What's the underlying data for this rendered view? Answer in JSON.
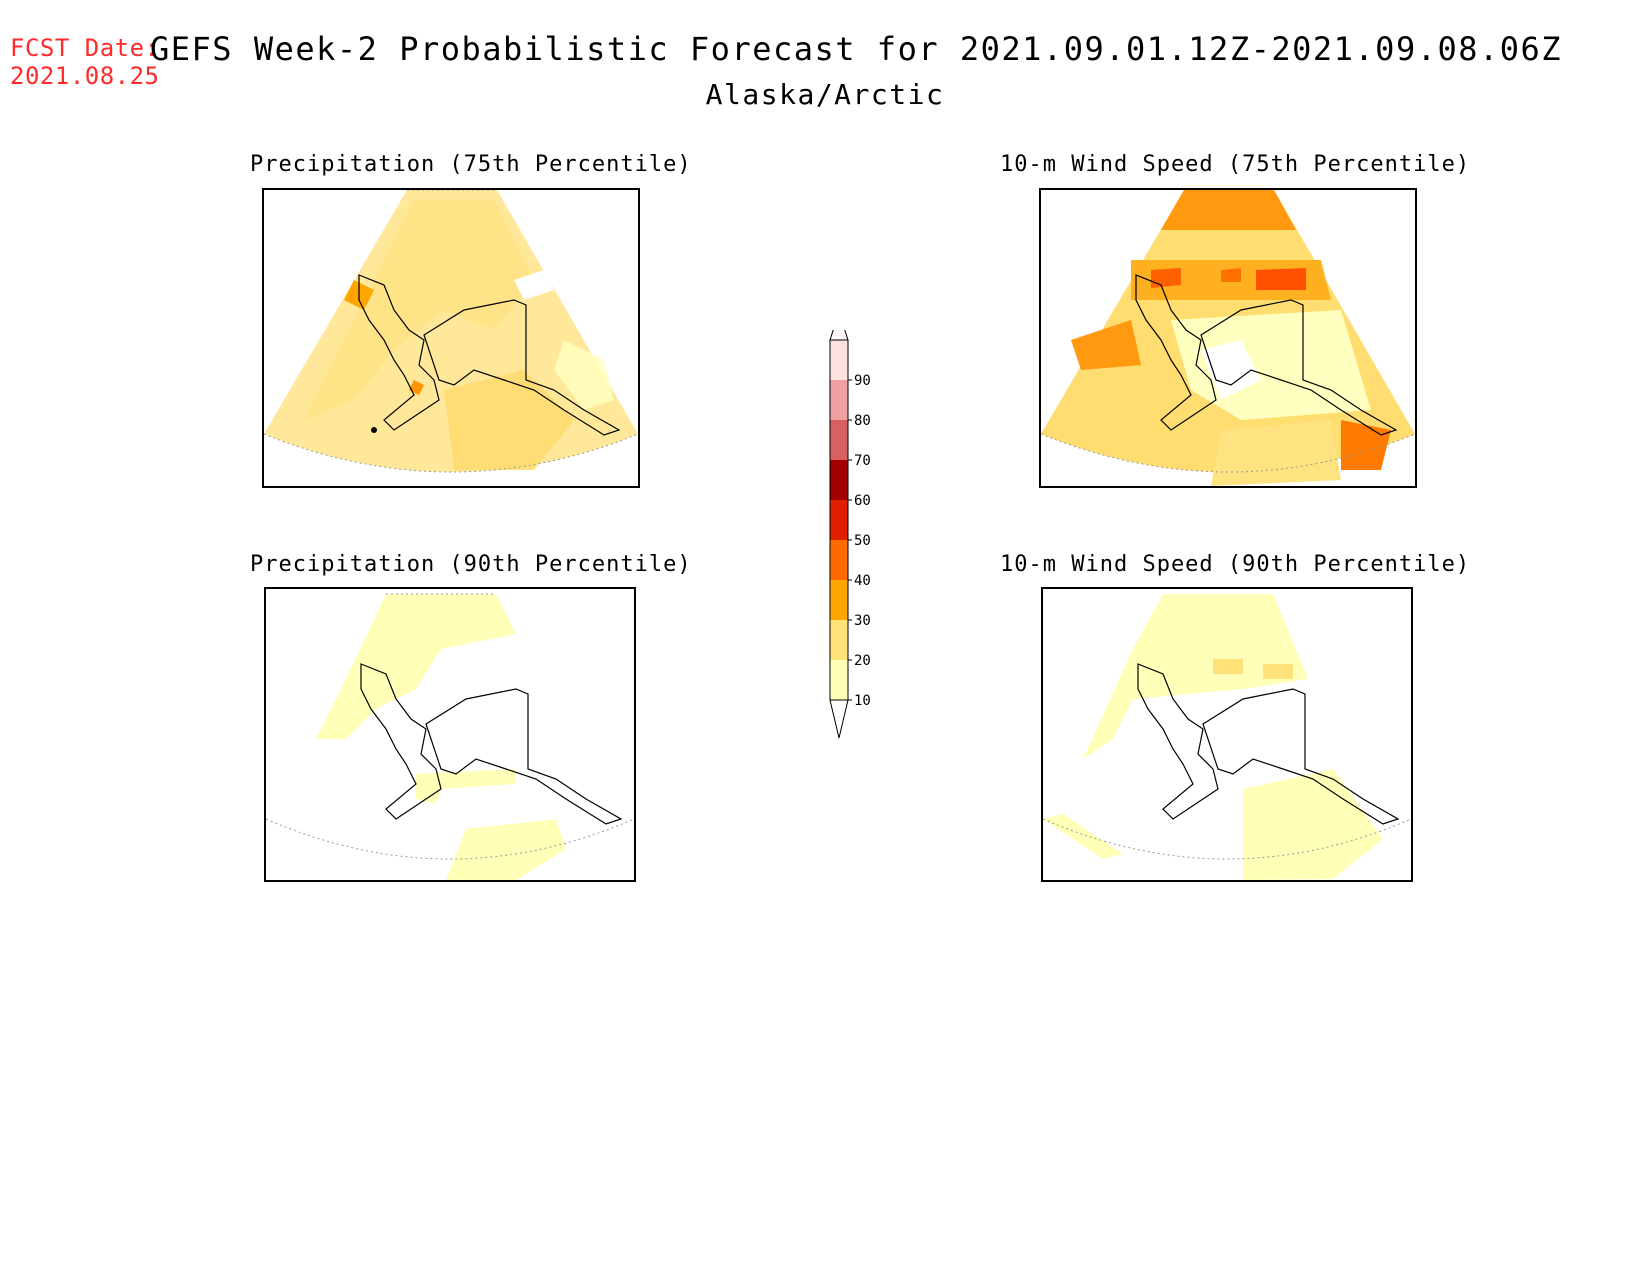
{
  "header": {
    "fcst_label": "FCST Date:",
    "fcst_date": "2021.08.25",
    "title": "GEFS Week-2 Probabilistic Forecast for 2021.09.01.12Z-2021.09.08.06Z",
    "region": "Alaska/Arctic"
  },
  "panels": [
    {
      "title": "Precipitation (75th Percentile)",
      "variable": "precipitation",
      "percentile": 75
    },
    {
      "title": "10-m Wind Speed (75th Percentile)",
      "variable": "wind",
      "percentile": 75
    },
    {
      "title": "Precipitation (90th Percentile)",
      "variable": "precipitation",
      "percentile": 90
    },
    {
      "title": "10-m Wind Speed (90th Percentile)",
      "variable": "wind",
      "percentile": 90
    }
  ],
  "legend": {
    "levels": [
      "10",
      "20",
      "30",
      "40",
      "50",
      "60",
      "70",
      "80",
      "90"
    ],
    "colors": [
      "#ffffb8",
      "#ffe37a",
      "#ffa500",
      "#ff6a00",
      "#e01e00",
      "#a00000",
      "#d86060",
      "#f0a0a0",
      "#fde0e0"
    ]
  }
}
